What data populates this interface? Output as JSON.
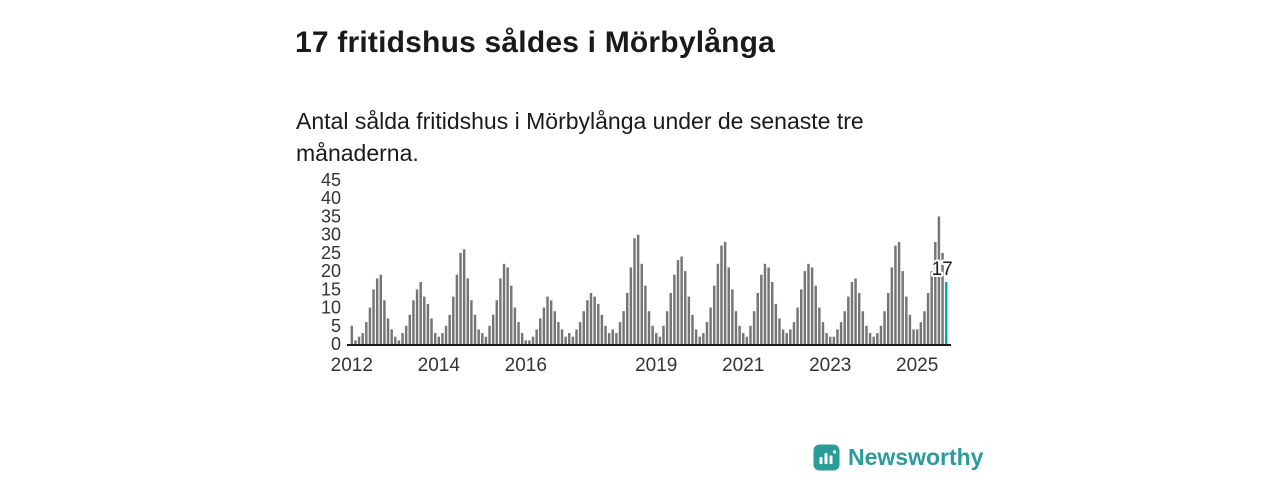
{
  "header": {
    "title": "17 fritidshus såldes i Mörbylånga",
    "subtitle": "Antal sålda fritidshus i Mörbylånga under de senaste tre månaderna."
  },
  "brand": {
    "name": "Newsworthy",
    "color": "#2a9d9a"
  },
  "chart_data": {
    "type": "bar",
    "title": "17 fritidshus såldes i Mörbylånga",
    "xlabel": "",
    "ylabel": "",
    "ylim": [
      0,
      45
    ],
    "yticks": [
      0,
      5,
      10,
      15,
      20,
      25,
      30,
      35,
      40,
      45
    ],
    "grid": false,
    "legend": "none",
    "start_year": 2012,
    "start_month": 1,
    "end_label": "2025-09",
    "year_tick_labels": [
      "2012",
      "2014",
      "2016",
      "2019",
      "2021",
      "2023",
      "2025"
    ],
    "bar_color": "#757575",
    "highlight_color": "#00a7a7",
    "highlight_label": "17",
    "highlight_value": 17,
    "values": [
      5,
      1,
      2,
      3,
      6,
      10,
      15,
      18,
      19,
      12,
      7,
      4,
      2,
      1,
      3,
      5,
      8,
      12,
      15,
      17,
      13,
      11,
      7,
      3,
      2,
      3,
      5,
      8,
      13,
      19,
      25,
      26,
      18,
      12,
      8,
      4,
      3,
      2,
      5,
      8,
      12,
      18,
      22,
      21,
      16,
      10,
      6,
      3,
      1,
      1,
      2,
      4,
      7,
      10,
      13,
      12,
      9,
      6,
      4,
      2,
      3,
      2,
      4,
      6,
      9,
      12,
      14,
      13,
      11,
      8,
      5,
      3,
      4,
      3,
      6,
      9,
      14,
      21,
      29,
      30,
      22,
      16,
      9,
      5,
      3,
      2,
      5,
      9,
      14,
      19,
      23,
      24,
      20,
      13,
      8,
      4,
      2,
      3,
      6,
      10,
      16,
      22,
      27,
      28,
      21,
      15,
      9,
      5,
      3,
      2,
      5,
      9,
      14,
      19,
      22,
      21,
      17,
      11,
      7,
      4,
      3,
      4,
      6,
      10,
      15,
      20,
      22,
      21,
      16,
      10,
      6,
      3,
      2,
      2,
      4,
      6,
      9,
      13,
      17,
      18,
      14,
      9,
      5,
      3,
      2,
      3,
      5,
      9,
      14,
      21,
      27,
      28,
      20,
      13,
      8,
      4,
      4,
      6,
      9,
      14,
      20,
      28,
      35,
      25,
      17
    ]
  }
}
